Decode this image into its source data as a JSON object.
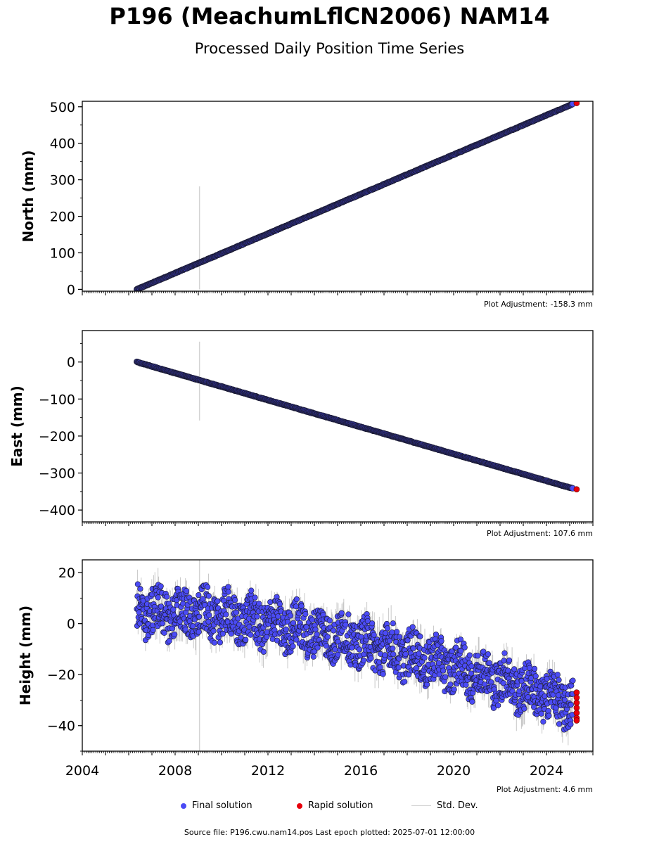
{
  "title": "P196 (MeachumLflCN2006) NAM14",
  "subtitle": "Processed Daily Position Time Series",
  "footer": "Source file: P196.cwu.nam14.pos  Last epoch plotted: 2025-07-01 12:00:00",
  "legend": {
    "final": "Final solution",
    "rapid": "Rapid solution",
    "std": "Std. Dev."
  },
  "colors": {
    "final": "#4b4bf5",
    "rapid": "#e8000b",
    "std": "#d3d3d3",
    "edge": "#1a1a2e"
  },
  "chart_data": [
    {
      "type": "scatter",
      "ylabel": "North (mm)",
      "adjustment": "Plot Adjustment: -158.3 mm",
      "xlim": [
        2004,
        2026
      ],
      "ylim": [
        -5,
        515
      ],
      "yticks": [
        0,
        100,
        200,
        300,
        400,
        500
      ],
      "ytick_labels": [
        "0",
        "100",
        "200",
        "300",
        "400",
        "500"
      ],
      "final_trend": [
        [
          2006.35,
          0
        ],
        [
          2025.15,
          508
        ]
      ],
      "rapid_points": [
        [
          2025.3,
          510
        ]
      ],
      "std_spike": {
        "x": 2009.05,
        "ymin": 0,
        "ymax": 282
      }
    },
    {
      "type": "scatter",
      "ylabel": "East (mm)",
      "adjustment": "Plot Adjustment: 107.6 mm",
      "xlim": [
        2004,
        2026
      ],
      "ylim": [
        -432,
        85
      ],
      "yticks": [
        0,
        -100,
        -200,
        -300,
        -400
      ],
      "ytick_labels": [
        "0",
        "−100",
        "−200",
        "−300",
        "−400"
      ],
      "final_trend": [
        [
          2006.35,
          0
        ],
        [
          2025.15,
          -342
        ]
      ],
      "rapid_points": [
        [
          2025.3,
          -344
        ]
      ],
      "std_spike": {
        "x": 2009.05,
        "ymin": -158,
        "ymax": 55
      }
    },
    {
      "type": "scatter",
      "ylabel": "Height (mm)",
      "adjustment": "Plot Adjustment: 4.6 mm",
      "xlim": [
        2004,
        2026
      ],
      "ylim": [
        -50,
        25
      ],
      "yticks": [
        20,
        0,
        -20,
        -40
      ],
      "ytick_labels": [
        "20",
        "0",
        "−20",
        "−40"
      ],
      "xticks": [
        2004,
        2008,
        2012,
        2016,
        2020,
        2024
      ],
      "xtick_labels": [
        "2004",
        "2008",
        "2012",
        "2016",
        "2020",
        "2024"
      ],
      "final_trend": [
        [
          2006.35,
          5
        ],
        [
          2010,
          3
        ],
        [
          2014,
          -3
        ],
        [
          2018,
          -12
        ],
        [
          2022,
          -22
        ],
        [
          2025.15,
          -32
        ]
      ],
      "final_spread": 9,
      "rapid_points": [
        [
          2025.3,
          -27
        ],
        [
          2025.3,
          -29
        ],
        [
          2025.3,
          -31
        ],
        [
          2025.3,
          -33
        ],
        [
          2025.3,
          -35
        ],
        [
          2025.3,
          -37
        ],
        [
          2025.3,
          -38
        ]
      ],
      "std_spike": {
        "x": 2009.05,
        "ymin": -50,
        "ymax": 25
      }
    }
  ]
}
